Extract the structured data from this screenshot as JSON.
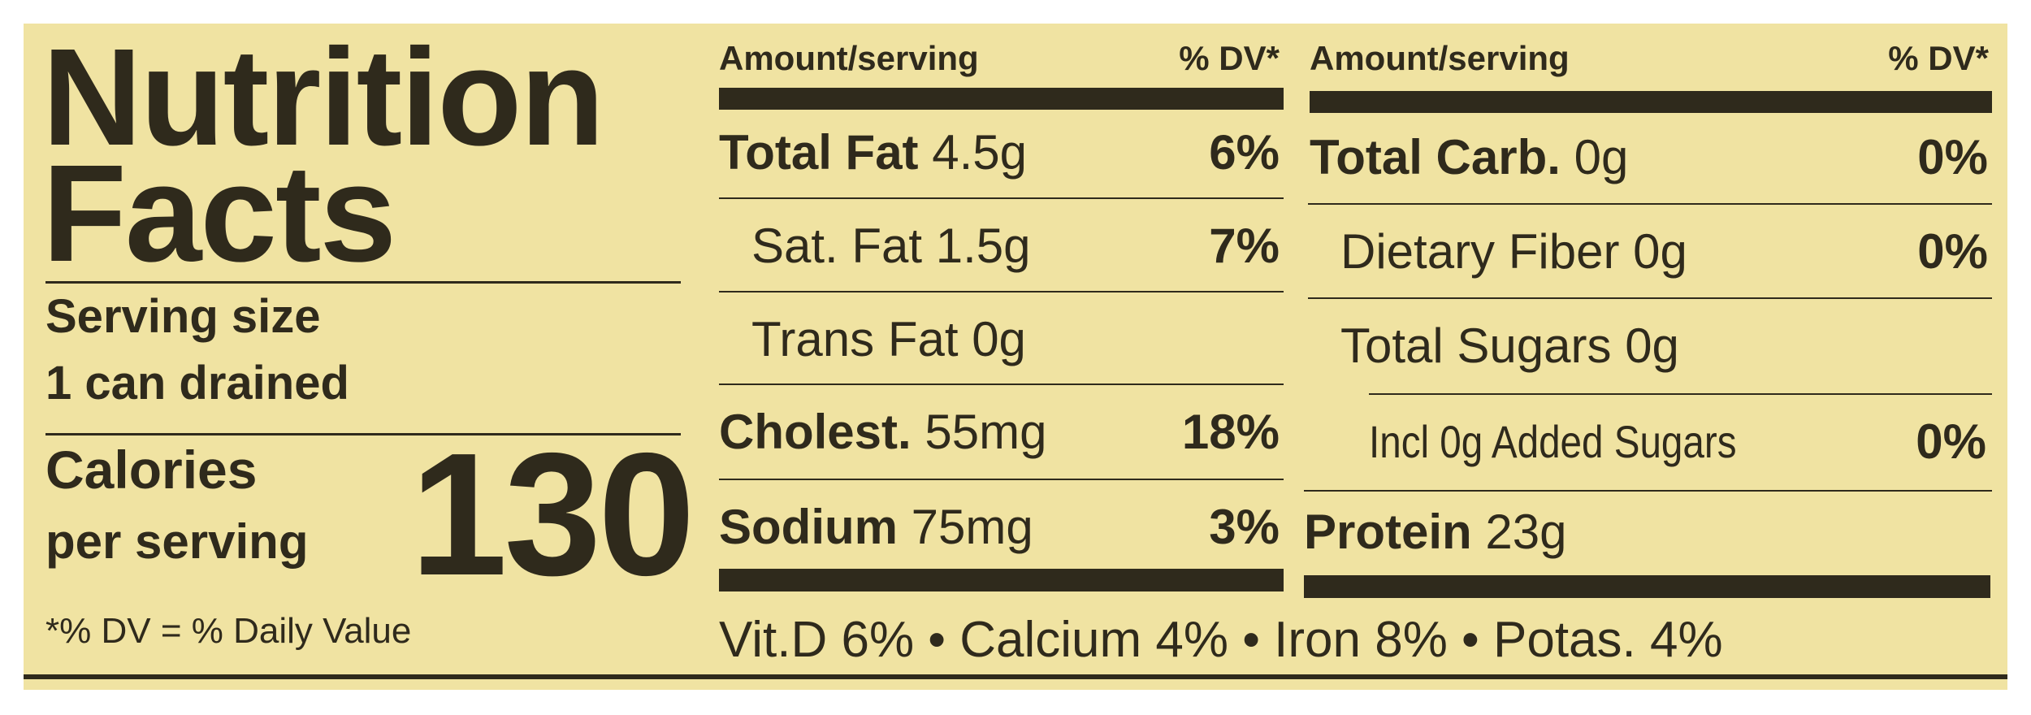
{
  "title_line1": "Nutrition",
  "title_line2": "Facts",
  "serving_size_label": "Serving size",
  "serving_size_value": "1 can drained",
  "calories_label": "Calories",
  "calories_sublabel": "per serving",
  "calories_value": "130",
  "footnote": "*% DV = % Daily Value",
  "header": {
    "amount": "Amount/serving",
    "dv": "% DV*"
  },
  "left_rows": [
    {
      "name": "Total Fat",
      "amount": "4.5g",
      "dv": "6%"
    },
    {
      "name": "Sat. Fat",
      "amount": "1.5g",
      "dv": "7%"
    },
    {
      "name": "Trans Fat",
      "amount": "0g",
      "dv": ""
    },
    {
      "name": "Cholest.",
      "amount": "55mg",
      "dv": "18%"
    },
    {
      "name": "Sodium",
      "amount": "75mg",
      "dv": "3%"
    }
  ],
  "right_rows": [
    {
      "name": "Total Carb.",
      "amount": "0g",
      "dv": "0%"
    },
    {
      "name": "Dietary Fiber",
      "amount": "0g",
      "dv": "0%"
    },
    {
      "name": "Total Sugars",
      "amount": "0g",
      "dv": ""
    },
    {
      "name": "Incl 0g Added Sugars",
      "amount": "",
      "dv": "0%"
    },
    {
      "name": "Protein",
      "amount": "23g",
      "dv": ""
    }
  ],
  "vitamins": "Vit.D 6% • Calcium 4% • Iron 8% • Potas. 4%",
  "colors": {
    "background": "#f0e3a2",
    "ink": "#2f2a1c"
  }
}
